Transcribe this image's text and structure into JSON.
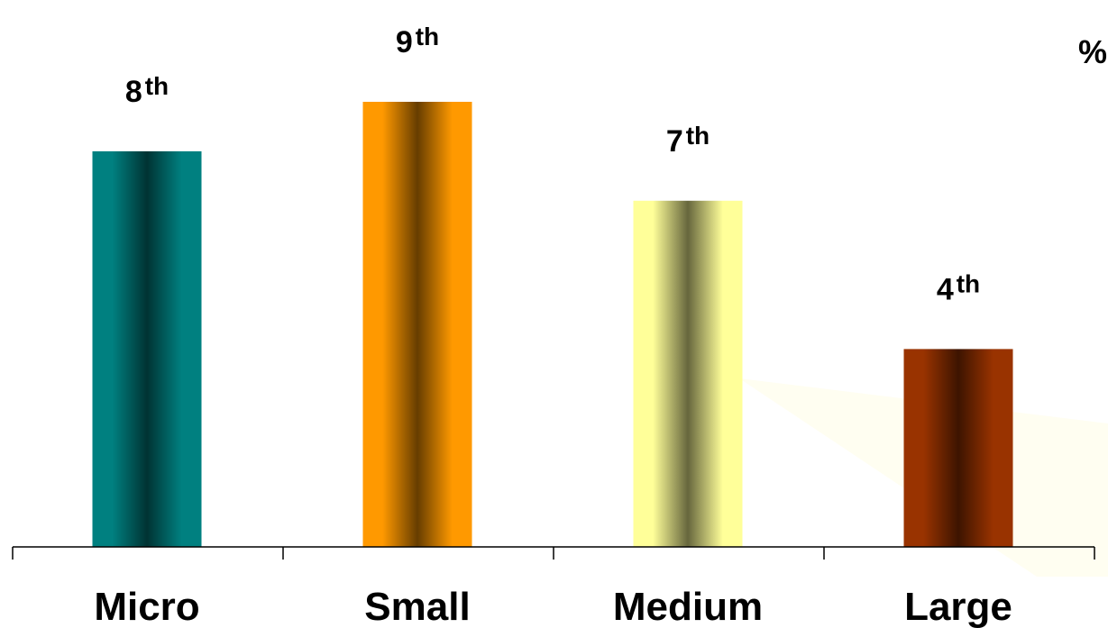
{
  "chart_data": {
    "type": "bar",
    "categories": [
      "Micro",
      "Small",
      "Medium",
      "Large"
    ],
    "values": [
      8,
      9,
      7,
      4
    ],
    "data_labels": [
      {
        "number": "8",
        "suffix": "th"
      },
      {
        "number": "9",
        "suffix": "th"
      },
      {
        "number": "7",
        "suffix": "th"
      },
      {
        "number": "4",
        "suffix": "th"
      }
    ],
    "unit_label": "%",
    "title": "",
    "xlabel": "",
    "ylabel": "",
    "ylim": [
      0,
      9
    ],
    "grid": false,
    "legend": "none",
    "bar_colors": [
      {
        "edge": "#008080",
        "center": "#003333"
      },
      {
        "edge": "#FF9900",
        "center": "#663D00"
      },
      {
        "edge": "#FFFF99",
        "center": "#66663D"
      },
      {
        "edge": "#993300",
        "center": "#3D1400"
      }
    ],
    "axis_color": "#000000"
  }
}
